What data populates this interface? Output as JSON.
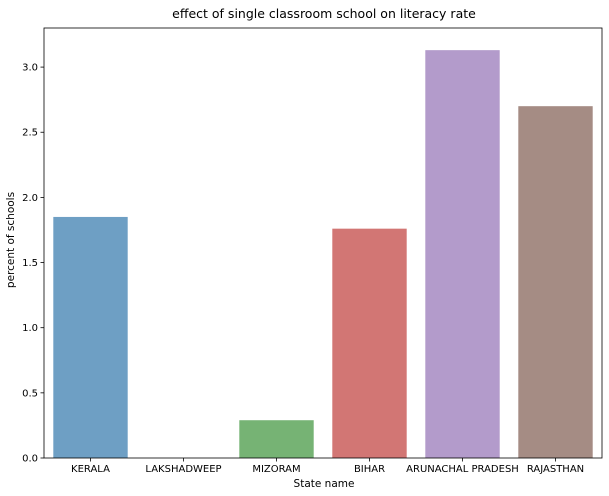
{
  "chart_data": {
    "type": "bar",
    "title": "effect of single classroom school on literacy rate",
    "xlabel": "State name",
    "ylabel": "percent of schools",
    "categories": [
      "KERALA",
      "LAKSHADWEEP",
      "MIZORAM",
      "BIHAR",
      "ARUNACHAL PRADESH",
      "RAJASTHAN"
    ],
    "values": [
      1.85,
      0.0,
      0.29,
      1.76,
      3.13,
      2.7
    ],
    "colors": [
      "#6e9fc4",
      "#ff9f40",
      "#76b374",
      "#d27674",
      "#b39bcb",
      "#a58c84"
    ],
    "ylim": [
      0,
      3.3
    ],
    "yticks": [
      "0.0",
      "0.5",
      "1.0",
      "1.5",
      "2.0",
      "2.5",
      "3.0"
    ],
    "grid": false,
    "legend": "none"
  }
}
